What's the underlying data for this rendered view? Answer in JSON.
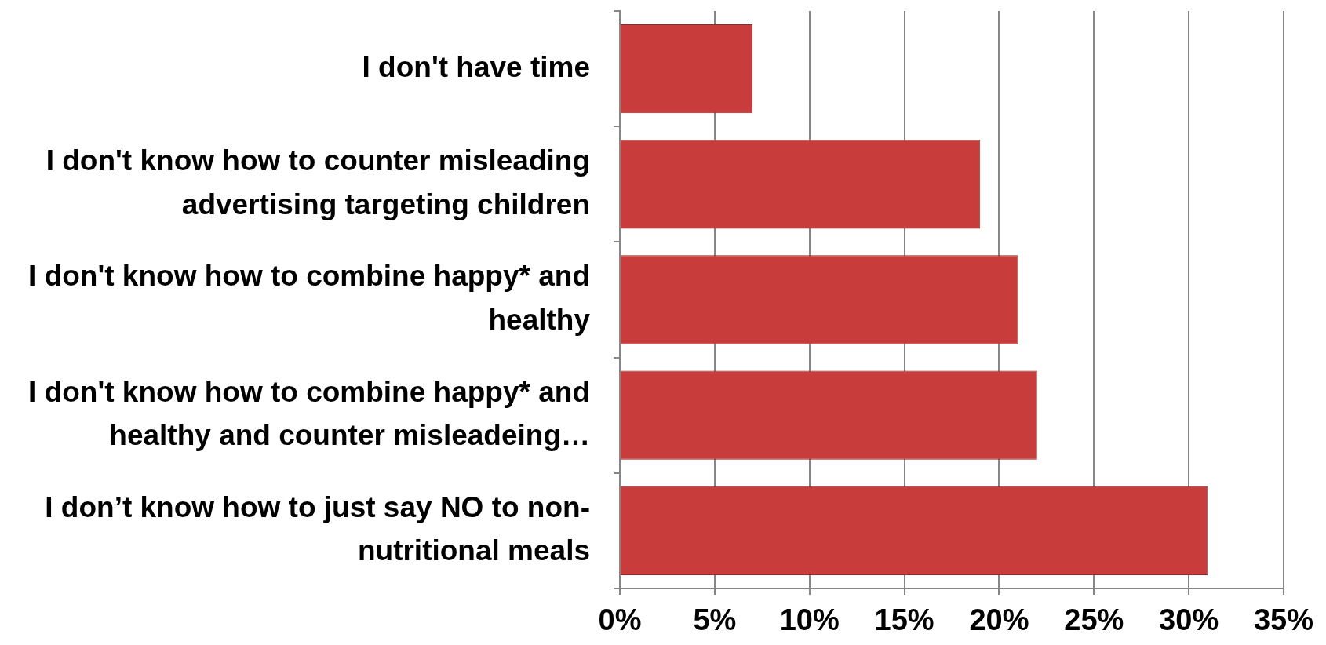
{
  "chart_data": {
    "type": "bar",
    "orientation": "horizontal",
    "categories": [
      "I don't have time",
      "I don't know how to counter misleading advertising targeting children",
      "I don't know how to combine happy* and healthy",
      "I don't know how to combine happy* and healthy and counter misleadeing…",
      "I don’t know how to just say NO to non-nutritional meals"
    ],
    "values": [
      7,
      19,
      21,
      22,
      31
    ],
    "color": "#c83c3c",
    "xlim": [
      0,
      35
    ],
    "xticks": [
      {
        "value": 0,
        "label": "0%"
      },
      {
        "value": 5,
        "label": "5%"
      },
      {
        "value": 10,
        "label": "10%"
      },
      {
        "value": 15,
        "label": "15%"
      },
      {
        "value": 20,
        "label": "20%"
      },
      {
        "value": 25,
        "label": "25%"
      },
      {
        "value": 30,
        "label": "30%"
      },
      {
        "value": 35,
        "label": "35%"
      }
    ],
    "grid": "x"
  }
}
